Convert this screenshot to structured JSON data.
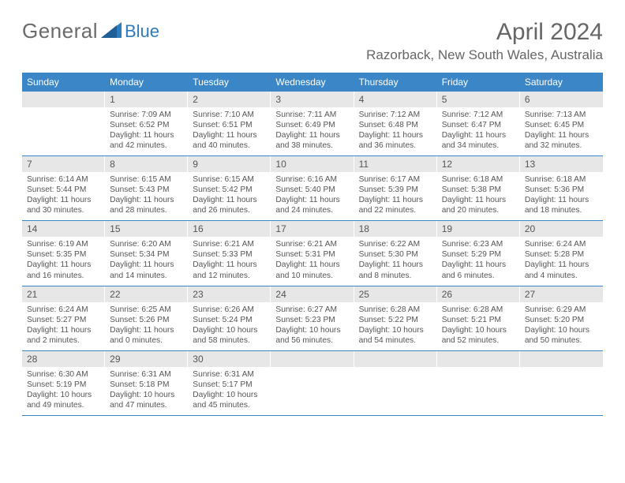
{
  "brand": {
    "name_part1": "General",
    "name_part2": "Blue"
  },
  "title": "April 2024",
  "location": "Razorback, New South Wales, Australia",
  "colors": {
    "header_bg": "#3b86c7",
    "daynum_bg": "#e7e7e7",
    "text": "#555555",
    "logo_blue": "#2f7bbf"
  },
  "dayNames": [
    "Sunday",
    "Monday",
    "Tuesday",
    "Wednesday",
    "Thursday",
    "Friday",
    "Saturday"
  ],
  "weeks": [
    [
      {
        "n": "",
        "lines": []
      },
      {
        "n": "1",
        "lines": [
          "Sunrise: 7:09 AM",
          "Sunset: 6:52 PM",
          "Daylight: 11 hours and 42 minutes."
        ]
      },
      {
        "n": "2",
        "lines": [
          "Sunrise: 7:10 AM",
          "Sunset: 6:51 PM",
          "Daylight: 11 hours and 40 minutes."
        ]
      },
      {
        "n": "3",
        "lines": [
          "Sunrise: 7:11 AM",
          "Sunset: 6:49 PM",
          "Daylight: 11 hours and 38 minutes."
        ]
      },
      {
        "n": "4",
        "lines": [
          "Sunrise: 7:12 AM",
          "Sunset: 6:48 PM",
          "Daylight: 11 hours and 36 minutes."
        ]
      },
      {
        "n": "5",
        "lines": [
          "Sunrise: 7:12 AM",
          "Sunset: 6:47 PM",
          "Daylight: 11 hours and 34 minutes."
        ]
      },
      {
        "n": "6",
        "lines": [
          "Sunrise: 7:13 AM",
          "Sunset: 6:45 PM",
          "Daylight: 11 hours and 32 minutes."
        ]
      }
    ],
    [
      {
        "n": "7",
        "lines": [
          "Sunrise: 6:14 AM",
          "Sunset: 5:44 PM",
          "Daylight: 11 hours and 30 minutes."
        ]
      },
      {
        "n": "8",
        "lines": [
          "Sunrise: 6:15 AM",
          "Sunset: 5:43 PM",
          "Daylight: 11 hours and 28 minutes."
        ]
      },
      {
        "n": "9",
        "lines": [
          "Sunrise: 6:15 AM",
          "Sunset: 5:42 PM",
          "Daylight: 11 hours and 26 minutes."
        ]
      },
      {
        "n": "10",
        "lines": [
          "Sunrise: 6:16 AM",
          "Sunset: 5:40 PM",
          "Daylight: 11 hours and 24 minutes."
        ]
      },
      {
        "n": "11",
        "lines": [
          "Sunrise: 6:17 AM",
          "Sunset: 5:39 PM",
          "Daylight: 11 hours and 22 minutes."
        ]
      },
      {
        "n": "12",
        "lines": [
          "Sunrise: 6:18 AM",
          "Sunset: 5:38 PM",
          "Daylight: 11 hours and 20 minutes."
        ]
      },
      {
        "n": "13",
        "lines": [
          "Sunrise: 6:18 AM",
          "Sunset: 5:36 PM",
          "Daylight: 11 hours and 18 minutes."
        ]
      }
    ],
    [
      {
        "n": "14",
        "lines": [
          "Sunrise: 6:19 AM",
          "Sunset: 5:35 PM",
          "Daylight: 11 hours and 16 minutes."
        ]
      },
      {
        "n": "15",
        "lines": [
          "Sunrise: 6:20 AM",
          "Sunset: 5:34 PM",
          "Daylight: 11 hours and 14 minutes."
        ]
      },
      {
        "n": "16",
        "lines": [
          "Sunrise: 6:21 AM",
          "Sunset: 5:33 PM",
          "Daylight: 11 hours and 12 minutes."
        ]
      },
      {
        "n": "17",
        "lines": [
          "Sunrise: 6:21 AM",
          "Sunset: 5:31 PM",
          "Daylight: 11 hours and 10 minutes."
        ]
      },
      {
        "n": "18",
        "lines": [
          "Sunrise: 6:22 AM",
          "Sunset: 5:30 PM",
          "Daylight: 11 hours and 8 minutes."
        ]
      },
      {
        "n": "19",
        "lines": [
          "Sunrise: 6:23 AM",
          "Sunset: 5:29 PM",
          "Daylight: 11 hours and 6 minutes."
        ]
      },
      {
        "n": "20",
        "lines": [
          "Sunrise: 6:24 AM",
          "Sunset: 5:28 PM",
          "Daylight: 11 hours and 4 minutes."
        ]
      }
    ],
    [
      {
        "n": "21",
        "lines": [
          "Sunrise: 6:24 AM",
          "Sunset: 5:27 PM",
          "Daylight: 11 hours and 2 minutes."
        ]
      },
      {
        "n": "22",
        "lines": [
          "Sunrise: 6:25 AM",
          "Sunset: 5:26 PM",
          "Daylight: 11 hours and 0 minutes."
        ]
      },
      {
        "n": "23",
        "lines": [
          "Sunrise: 6:26 AM",
          "Sunset: 5:24 PM",
          "Daylight: 10 hours and 58 minutes."
        ]
      },
      {
        "n": "24",
        "lines": [
          "Sunrise: 6:27 AM",
          "Sunset: 5:23 PM",
          "Daylight: 10 hours and 56 minutes."
        ]
      },
      {
        "n": "25",
        "lines": [
          "Sunrise: 6:28 AM",
          "Sunset: 5:22 PM",
          "Daylight: 10 hours and 54 minutes."
        ]
      },
      {
        "n": "26",
        "lines": [
          "Sunrise: 6:28 AM",
          "Sunset: 5:21 PM",
          "Daylight: 10 hours and 52 minutes."
        ]
      },
      {
        "n": "27",
        "lines": [
          "Sunrise: 6:29 AM",
          "Sunset: 5:20 PM",
          "Daylight: 10 hours and 50 minutes."
        ]
      }
    ],
    [
      {
        "n": "28",
        "lines": [
          "Sunrise: 6:30 AM",
          "Sunset: 5:19 PM",
          "Daylight: 10 hours and 49 minutes."
        ]
      },
      {
        "n": "29",
        "lines": [
          "Sunrise: 6:31 AM",
          "Sunset: 5:18 PM",
          "Daylight: 10 hours and 47 minutes."
        ]
      },
      {
        "n": "30",
        "lines": [
          "Sunrise: 6:31 AM",
          "Sunset: 5:17 PM",
          "Daylight: 10 hours and 45 minutes."
        ]
      },
      {
        "n": "",
        "lines": []
      },
      {
        "n": "",
        "lines": []
      },
      {
        "n": "",
        "lines": []
      },
      {
        "n": "",
        "lines": []
      }
    ]
  ]
}
